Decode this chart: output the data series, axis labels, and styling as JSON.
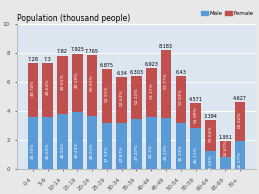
{
  "title": "Population (thousand people)",
  "categories": [
    "0-4",
    "5-9",
    "10-14",
    "15-19",
    "20-24",
    "25-29",
    "30-34",
    "35-39",
    "40-44",
    "45-49",
    "50-54",
    "55-59",
    "60-64",
    "65-69",
    "70+"
  ],
  "male_values": [
    3.58,
    3.62,
    3.83,
    3.93,
    3.68,
    3.17,
    3.17,
    3.45,
    3.58,
    3.55,
    3.18,
    2.84,
    1.27,
    0.88,
    1.97
  ],
  "female_values": [
    3.7,
    3.68,
    3.99,
    4.02,
    4.17,
    3.7,
    3.17,
    2.98,
    3.35,
    4.63,
    3.25,
    1.73,
    2.12,
    1.07,
    2.66
  ],
  "male_pcts": [
    "49.76%",
    "49.63%",
    "48.94%",
    "49.44%",
    "49.01%",
    "47.13%",
    "47.87%",
    "47.47%",
    "44.1%",
    "44.23%",
    "46.13%",
    "45.11%",
    "29.50%",
    "47.87%",
    "42.57%"
  ],
  "female_pcts": [
    "49.74%",
    "49.63%",
    "49.55%",
    "49.59%",
    "50.93%",
    "52.91%",
    "52.63%",
    "52.13%",
    "53.17%",
    "53.77%",
    "53.93%",
    "51.99%",
    "50.64%",
    "52.87%",
    "60.02%"
  ],
  "totals": [
    "7.28",
    "7.3",
    "7.82",
    "7.925",
    "7.765",
    "6.875",
    "6.34",
    "6.303",
    "6.923",
    "8.183",
    "6.43",
    "4.571",
    "3.394",
    "1.951",
    "4.627"
  ],
  "male_color": "#5b9bd5",
  "female_color": "#c0504d",
  "bg_color": "#e8e8e8",
  "plot_bg_color": "#dce6f1",
  "ylim": [
    0,
    10
  ],
  "yticks": [
    0,
    2,
    4,
    6,
    8,
    10
  ],
  "legend_male": "Male",
  "legend_female": "Female",
  "title_fontsize": 5.5,
  "tick_fontsize": 4.0,
  "label_fontsize": 3.5,
  "pct_fontsize": 3.2
}
